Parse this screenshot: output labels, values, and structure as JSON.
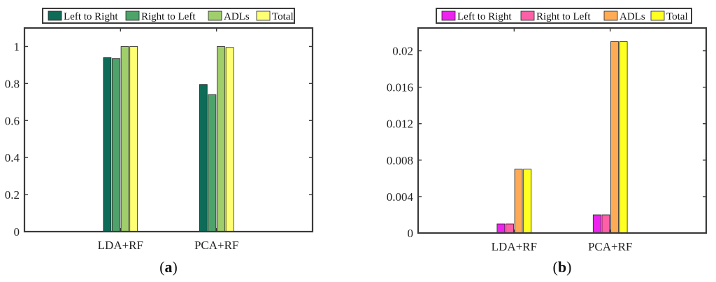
{
  "chart_data": [
    {
      "panel_label": "(a)",
      "type": "bar",
      "categories": [
        "LDA+RF",
        "PCA+RF"
      ],
      "series": [
        {
          "name": "Left to Right",
          "values": [
            0.94,
            0.795
          ],
          "color": "#0d6b57"
        },
        {
          "name": "Right to Left",
          "values": [
            0.935,
            0.74
          ],
          "color": "#4ea36a"
        },
        {
          "name": "ADLs",
          "values": [
            1.0,
            1.0
          ],
          "color": "#9fce6a"
        },
        {
          "name": "Total",
          "values": [
            1.0,
            0.995
          ],
          "color": "#ffff73"
        }
      ],
      "ylim": [
        0,
        1.1
      ],
      "yticks": [
        0,
        0.2,
        0.4,
        0.6,
        0.8,
        1
      ],
      "ytick_labels": [
        "0",
        "0.2",
        "0.4",
        "0.6",
        "0.8",
        "1"
      ],
      "xlim": [
        0,
        3
      ],
      "x_positions": [
        1,
        2
      ],
      "legend_position": "top",
      "grid": false
    },
    {
      "panel_label": "(b)",
      "type": "bar",
      "categories": [
        "LDA+RF",
        "PCA+RF"
      ],
      "series": [
        {
          "name": "Left to Right",
          "values": [
            0.001,
            0.002
          ],
          "color": "#ee22ee"
        },
        {
          "name": "Right to Left",
          "values": [
            0.001,
            0.002
          ],
          "color": "#ff5fa7"
        },
        {
          "name": "ADLs",
          "values": [
            0.007,
            0.021
          ],
          "color": "#ffaa55"
        },
        {
          "name": "Total",
          "values": [
            0.007,
            0.021
          ],
          "color": "#ffff22"
        }
      ],
      "ylim": [
        0,
        0.0225
      ],
      "yticks": [
        0,
        0.004,
        0.008,
        0.012,
        0.016,
        0.02
      ],
      "ytick_labels": [
        "0",
        "0.004",
        "0.008",
        "0.012",
        "0.016",
        "0.02"
      ],
      "xlim": [
        0,
        3
      ],
      "x_positions": [
        1,
        2
      ],
      "legend_position": "top",
      "grid": false
    }
  ]
}
